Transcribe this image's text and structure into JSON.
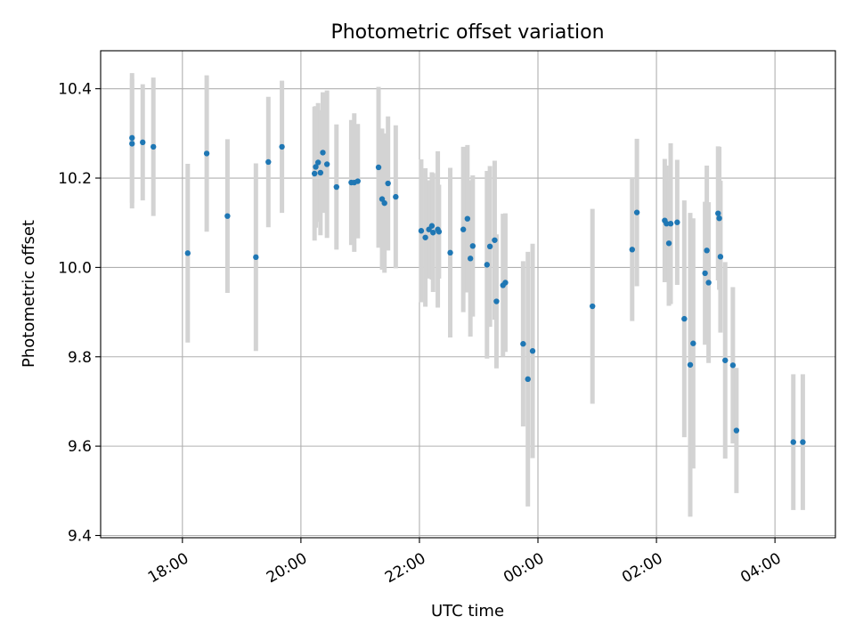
{
  "chart_data": {
    "type": "scatter",
    "title": "Photometric offset variation",
    "xlabel": "UTC time",
    "ylabel": "Photometric offset",
    "x_tick_labels": [
      "18:00",
      "20:00",
      "22:00",
      "00:00",
      "02:00",
      "04:00"
    ],
    "x_tick_hours": [
      18,
      20,
      22,
      24,
      26,
      28
    ],
    "y_tick_labels": [
      "9.4",
      "9.6",
      "9.8",
      "10.0",
      "10.2",
      "10.4"
    ],
    "y_tick_values": [
      9.4,
      9.6,
      9.8,
      10.0,
      10.2,
      10.4
    ],
    "xlim_hours": [
      16.62,
      29.02
    ],
    "ylim": [
      9.395,
      10.485
    ],
    "grid": true,
    "marker_color": "#1f77b4",
    "errorbar_color": "#d3d3d3",
    "points": [
      {
        "t": 17.15,
        "y": 10.29,
        "err": 0.145
      },
      {
        "t": 17.15,
        "y": 10.277,
        "err": 0.145
      },
      {
        "t": 17.33,
        "y": 10.28,
        "err": 0.13
      },
      {
        "t": 17.51,
        "y": 10.27,
        "err": 0.155
      },
      {
        "t": 18.09,
        "y": 10.032,
        "err": 0.2
      },
      {
        "t": 18.41,
        "y": 10.255,
        "err": 0.175
      },
      {
        "t": 18.76,
        "y": 10.115,
        "err": 0.172
      },
      {
        "t": 19.24,
        "y": 10.023,
        "err": 0.21
      },
      {
        "t": 19.45,
        "y": 10.236,
        "err": 0.146
      },
      {
        "t": 19.68,
        "y": 10.27,
        "err": 0.148
      },
      {
        "t": 20.23,
        "y": 10.21,
        "err": 0.15
      },
      {
        "t": 20.25,
        "y": 10.225,
        "err": 0.136
      },
      {
        "t": 20.29,
        "y": 10.235,
        "err": 0.133
      },
      {
        "t": 20.33,
        "y": 10.212,
        "err": 0.14
      },
      {
        "t": 20.37,
        "y": 10.257,
        "err": 0.135
      },
      {
        "t": 20.44,
        "y": 10.231,
        "err": 0.165
      },
      {
        "t": 20.6,
        "y": 10.18,
        "err": 0.14
      },
      {
        "t": 20.85,
        "y": 10.19,
        "err": 0.14
      },
      {
        "t": 20.9,
        "y": 10.19,
        "err": 0.155
      },
      {
        "t": 20.96,
        "y": 10.193,
        "err": 0.128
      },
      {
        "t": 21.31,
        "y": 10.224,
        "err": 0.18
      },
      {
        "t": 21.37,
        "y": 10.153,
        "err": 0.158
      },
      {
        "t": 21.41,
        "y": 10.144,
        "err": 0.156
      },
      {
        "t": 21.47,
        "y": 10.188,
        "err": 0.15
      },
      {
        "t": 21.6,
        "y": 10.158,
        "err": 0.16
      },
      {
        "t": 22.03,
        "y": 10.082,
        "err": 0.16
      },
      {
        "t": 22.1,
        "y": 10.067,
        "err": 0.155
      },
      {
        "t": 22.16,
        "y": 10.085,
        "err": 0.11
      },
      {
        "t": 22.21,
        "y": 10.093,
        "err": 0.12
      },
      {
        "t": 22.23,
        "y": 10.078,
        "err": 0.133
      },
      {
        "t": 22.31,
        "y": 10.085,
        "err": 0.175
      },
      {
        "t": 22.33,
        "y": 10.08,
        "err": 0.105
      },
      {
        "t": 22.52,
        "y": 10.033,
        "err": 0.19
      },
      {
        "t": 22.74,
        "y": 10.085,
        "err": 0.185
      },
      {
        "t": 22.81,
        "y": 10.109,
        "err": 0.165
      },
      {
        "t": 22.86,
        "y": 10.02,
        "err": 0.175
      },
      {
        "t": 22.9,
        "y": 10.048,
        "err": 0.158
      },
      {
        "t": 23.14,
        "y": 10.006,
        "err": 0.21
      },
      {
        "t": 23.19,
        "y": 10.047,
        "err": 0.18
      },
      {
        "t": 23.27,
        "y": 10.061,
        "err": 0.178
      },
      {
        "t": 23.3,
        "y": 9.924,
        "err": 0.15
      },
      {
        "t": 23.41,
        "y": 9.96,
        "err": 0.16
      },
      {
        "t": 23.45,
        "y": 9.966,
        "err": 0.155
      },
      {
        "t": 23.75,
        "y": 9.829,
        "err": 0.185
      },
      {
        "t": 23.83,
        "y": 9.75,
        "err": 0.285
      },
      {
        "t": 23.91,
        "y": 9.813,
        "err": 0.24
      },
      {
        "t": 24.92,
        "y": 9.913,
        "err": 0.218
      },
      {
        "t": 25.59,
        "y": 10.04,
        "err": 0.16
      },
      {
        "t": 25.67,
        "y": 10.123,
        "err": 0.165
      },
      {
        "t": 26.14,
        "y": 10.105,
        "err": 0.138
      },
      {
        "t": 26.17,
        "y": 10.098,
        "err": 0.13
      },
      {
        "t": 26.21,
        "y": 10.054,
        "err": 0.14
      },
      {
        "t": 26.24,
        "y": 10.098,
        "err": 0.18
      },
      {
        "t": 26.35,
        "y": 10.101,
        "err": 0.14
      },
      {
        "t": 26.47,
        "y": 9.885,
        "err": 0.265
      },
      {
        "t": 26.57,
        "y": 9.782,
        "err": 0.34
      },
      {
        "t": 26.62,
        "y": 9.83,
        "err": 0.28
      },
      {
        "t": 26.82,
        "y": 9.987,
        "err": 0.16
      },
      {
        "t": 26.85,
        "y": 10.038,
        "err": 0.19
      },
      {
        "t": 26.88,
        "y": 9.966,
        "err": 0.18
      },
      {
        "t": 27.04,
        "y": 10.121,
        "err": 0.15
      },
      {
        "t": 27.06,
        "y": 10.11,
        "err": 0.16
      },
      {
        "t": 27.08,
        "y": 10.024,
        "err": 0.17
      },
      {
        "t": 27.16,
        "y": 9.792,
        "err": 0.22
      },
      {
        "t": 27.29,
        "y": 9.781,
        "err": 0.175
      },
      {
        "t": 27.35,
        "y": 9.635,
        "err": 0.14
      },
      {
        "t": 28.31,
        "y": 9.609,
        "err": 0.152
      },
      {
        "t": 28.47,
        "y": 9.609,
        "err": 0.152
      }
    ]
  }
}
